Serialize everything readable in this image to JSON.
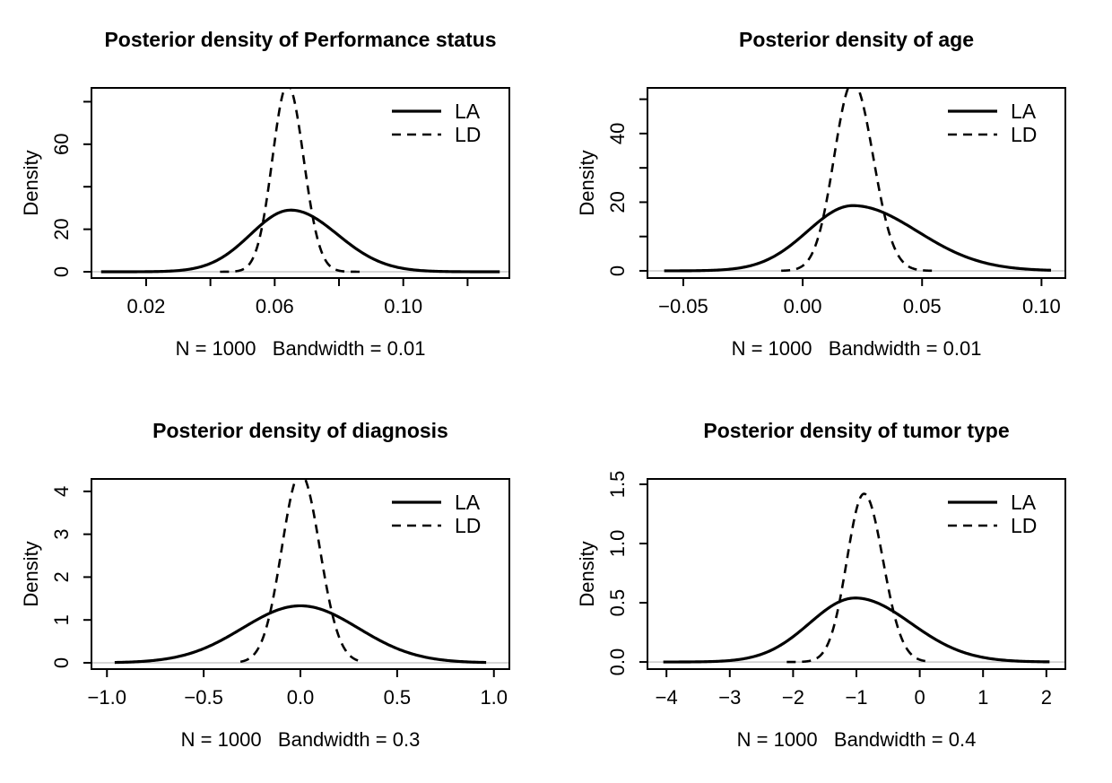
{
  "figure": {
    "background": "#ffffff",
    "stroke_color": "#000000",
    "zero_line_color": "#c8c8c8",
    "text_color": "#000000",
    "legend": {
      "position": "top-right",
      "entries": [
        {
          "label": "LA",
          "line": "solid"
        },
        {
          "label": "LD",
          "line": "dashed"
        }
      ]
    }
  },
  "chart_data": [
    {
      "type": "line",
      "title": "Posterior density of Performance status",
      "ylabel": "Density",
      "xlabel": "N = 1000   Bandwidth = 0.01",
      "legend_entries": [
        "LA",
        "LD"
      ],
      "xlim": [
        0.003,
        0.133
      ],
      "ylim": [
        -2.95,
        86.5
      ],
      "xticks": [
        0.02,
        0.04,
        0.06,
        0.08,
        0.1,
        0.12
      ],
      "xtick_labels": [
        "0.02",
        "",
        "0.06",
        "",
        "0.10",
        ""
      ],
      "yticks": [
        0,
        20,
        40,
        60,
        80
      ],
      "ytick_labels": [
        "0",
        "20",
        "",
        "60",
        ""
      ],
      "grid": false,
      "series": [
        {
          "name": "LA",
          "line": "solid",
          "shape": "gaussian",
          "mode": 0.065,
          "peak": 29,
          "sd_left": 0.0125,
          "sd_right": 0.0145,
          "x_from": 0.006,
          "x_to": 0.13,
          "clipped_at_top": false
        },
        {
          "name": "LD",
          "line": "dashed",
          "shape": "gaussian",
          "mode": 0.064,
          "peak": 88,
          "sd_left": 0.0047,
          "sd_right": 0.005,
          "x_from": 0.043,
          "x_to": 0.087,
          "clipped_at_top": true
        }
      ]
    },
    {
      "type": "line",
      "title": "Posterior density of age",
      "ylabel": "Density",
      "xlabel": "N = 1000   Bandwidth = 0.01",
      "legend_entries": [
        "LA",
        "LD"
      ],
      "xlim": [
        -0.065,
        0.11
      ],
      "ylim": [
        -2.1,
        53.3
      ],
      "xticks": [
        -0.05,
        0.0,
        0.05,
        0.1
      ],
      "xtick_labels": [
        "−0.05",
        "0.00",
        "0.05",
        "0.10"
      ],
      "yticks": [
        0,
        10,
        20,
        30,
        40,
        50
      ],
      "ytick_labels": [
        "0",
        "",
        "20",
        "",
        "40",
        ""
      ],
      "grid": false,
      "series": [
        {
          "name": "LA",
          "line": "solid",
          "shape": "gaussian",
          "mode": 0.021,
          "peak": 19,
          "sd_left": 0.019,
          "sd_right": 0.027,
          "x_from": -0.058,
          "x_to": 0.104,
          "clipped_at_top": false
        },
        {
          "name": "LD",
          "line": "dashed",
          "shape": "gaussian",
          "mode": 0.021,
          "peak": 55,
          "sd_left": 0.0078,
          "sd_right": 0.0085,
          "x_from": -0.009,
          "x_to": 0.056,
          "clipped_at_top": true
        }
      ]
    },
    {
      "type": "line",
      "title": "Posterior density of diagnosis",
      "ylabel": "Density",
      "xlabel": "N = 1000   Bandwidth = 0.3",
      "legend_entries": [
        "LA",
        "LD"
      ],
      "xlim": [
        -1.08,
        1.08
      ],
      "ylim": [
        -0.147,
        4.29
      ],
      "xticks": [
        -1.0,
        -0.5,
        0.0,
        0.5,
        1.0
      ],
      "xtick_labels": [
        "−1.0",
        "−0.5",
        "0.0",
        "0.5",
        "1.0"
      ],
      "yticks": [
        0,
        1,
        2,
        3,
        4
      ],
      "ytick_labels": [
        "0",
        "1",
        "2",
        "3",
        "4"
      ],
      "grid": false,
      "series": [
        {
          "name": "LA",
          "line": "solid",
          "shape": "gaussian",
          "mode": 0.0,
          "peak": 1.33,
          "sd_left": 0.3,
          "sd_right": 0.3,
          "x_from": -0.96,
          "x_to": 0.96,
          "clipped_at_top": false
        },
        {
          "name": "LD",
          "line": "dashed",
          "shape": "gaussian",
          "mode": 0.0,
          "peak": 4.42,
          "sd_left": 0.096,
          "sd_right": 0.1,
          "x_from": -0.31,
          "x_to": 0.3,
          "clipped_at_top": true
        }
      ]
    },
    {
      "type": "line",
      "title": "Posterior density of tumor type",
      "ylabel": "Density",
      "xlabel": "N = 1000   Bandwidth = 0.4",
      "legend_entries": [
        "LA",
        "LD"
      ],
      "xlim": [
        -4.3,
        2.3
      ],
      "ylim": [
        -0.06,
        1.545
      ],
      "xticks": [
        -4,
        -3,
        -2,
        -1,
        0,
        1,
        2
      ],
      "xtick_labels": [
        "−4",
        "−3",
        "−2",
        "−1",
        "0",
        "1",
        "2"
      ],
      "yticks": [
        0.0,
        0.5,
        1.0,
        1.5
      ],
      "ytick_labels": [
        "0.0",
        "0.5",
        "1.0",
        "1.5"
      ],
      "grid": false,
      "series": [
        {
          "name": "LA",
          "line": "solid",
          "shape": "gaussian",
          "mode": -1.02,
          "peak": 0.54,
          "sd_left": 0.72,
          "sd_right": 0.88,
          "x_from": -4.05,
          "x_to": 2.05,
          "clipped_at_top": false
        },
        {
          "name": "LD",
          "line": "dashed",
          "shape": "gaussian",
          "mode": -0.88,
          "peak": 1.42,
          "sd_left": 0.27,
          "sd_right": 0.3,
          "x_from": -2.1,
          "x_to": 0.18,
          "clipped_at_top": false
        }
      ]
    }
  ]
}
